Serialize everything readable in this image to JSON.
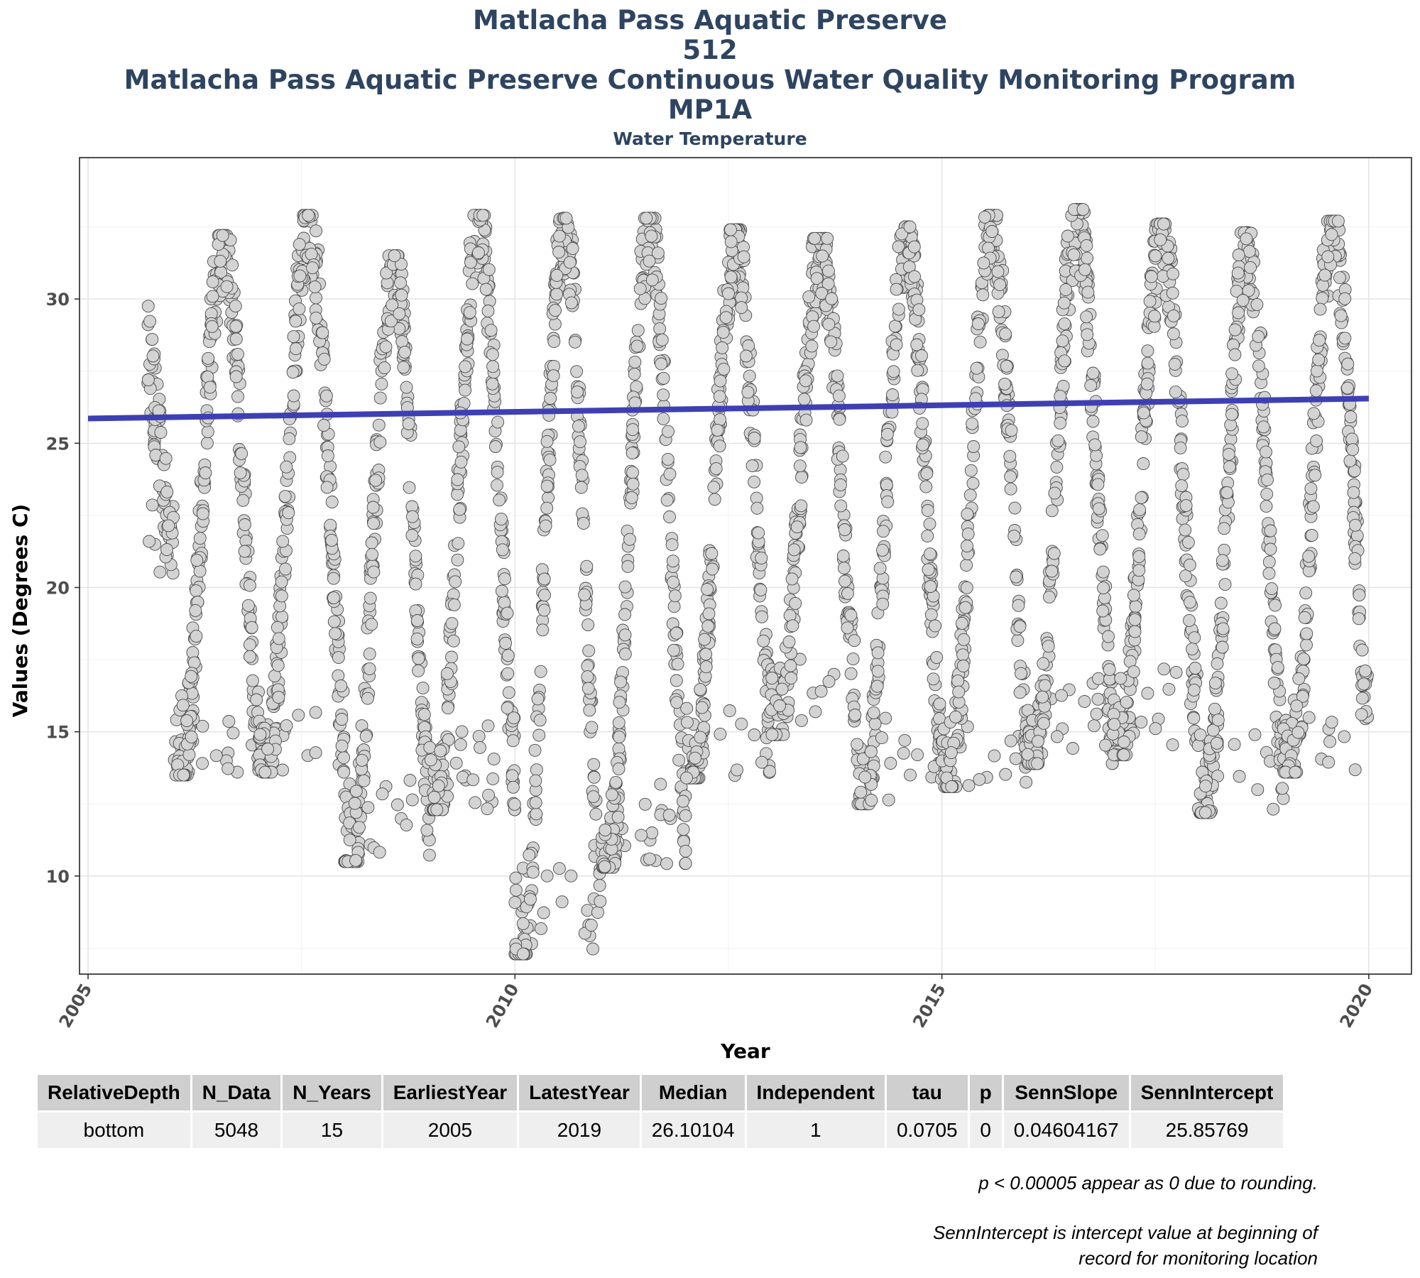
{
  "titles": {
    "line1": "Matlacha Pass Aquatic Preserve",
    "line2": "512",
    "line3": "Matlacha Pass Aquatic Preserve Continuous Water Quality Monitoring Program",
    "line4": "MP1A",
    "subtitle": "Water Temperature"
  },
  "chart_data": {
    "type": "scatter",
    "title": "Matlacha Pass Aquatic Preserve",
    "subtitle": "Water Temperature",
    "xlabel": "Year",
    "ylabel": "Values (Degrees C)",
    "xlim": [
      2004.9,
      2020.5
    ],
    "ylim": [
      6.6,
      34.9
    ],
    "x_ticks": [
      2005,
      2010,
      2015,
      2020
    ],
    "y_ticks": [
      10,
      15,
      20,
      25,
      30
    ],
    "grid": true,
    "legend": "none",
    "point_fill": "#d3d3d3",
    "point_stroke": "#4a4a4a",
    "trend_color": "#3f3fb4",
    "trend_line": {
      "x": [
        2005.0,
        2020.0
      ],
      "y": [
        25.85769,
        26.54831
      ]
    },
    "series_by_year": [
      {
        "year": 2005,
        "start": 2005.7,
        "end": 2006.0,
        "max": 29.9,
        "min": 20.5
      },
      {
        "year": 2006,
        "start": 2006.0,
        "end": 2007.0,
        "max": 32.2,
        "min": 13.5
      },
      {
        "year": 2007,
        "start": 2007.0,
        "end": 2008.0,
        "max": 32.9,
        "min": 13.6
      },
      {
        "year": 2008,
        "start": 2008.0,
        "end": 2009.0,
        "max": 31.5,
        "min": 10.5
      },
      {
        "year": 2009,
        "start": 2009.0,
        "end": 2010.0,
        "max": 32.9,
        "min": 12.3
      },
      {
        "year": 2010,
        "start": 2010.0,
        "end": 2011.0,
        "max": 32.8,
        "min": 7.3
      },
      {
        "year": 2011,
        "start": 2011.0,
        "end": 2012.0,
        "max": 32.8,
        "min": 10.3
      },
      {
        "year": 2012,
        "start": 2012.0,
        "end": 2013.0,
        "max": 32.4,
        "min": 13.4
      },
      {
        "year": 2013,
        "start": 2013.0,
        "end": 2014.0,
        "max": 32.1,
        "min": 14.9
      },
      {
        "year": 2014,
        "start": 2014.0,
        "end": 2015.0,
        "max": 32.5,
        "min": 12.5
      },
      {
        "year": 2015,
        "start": 2015.0,
        "end": 2016.0,
        "max": 32.9,
        "min": 13.1
      },
      {
        "year": 2016,
        "start": 2016.0,
        "end": 2017.0,
        "max": 33.1,
        "min": 13.9
      },
      {
        "year": 2017,
        "start": 2017.0,
        "end": 2018.0,
        "max": 32.6,
        "min": 14.2
      },
      {
        "year": 2018,
        "start": 2018.0,
        "end": 2019.0,
        "max": 32.3,
        "min": 12.2
      },
      {
        "year": 2019,
        "start": 2019.0,
        "end": 2020.0,
        "max": 32.7,
        "min": 13.6
      }
    ]
  },
  "table": {
    "headers": [
      "RelativeDepth",
      "N_Data",
      "N_Years",
      "EarliestYear",
      "LatestYear",
      "Median",
      "Independent",
      "tau",
      "p",
      "SennSlope",
      "SennIntercept"
    ],
    "rows": [
      [
        "bottom",
        "5048",
        "15",
        "2005",
        "2019",
        "26.10104",
        "1",
        "0.0705",
        "0",
        "0.04604167",
        "25.85769"
      ]
    ]
  },
  "notes": {
    "note1": "p < 0.00005 appear as 0 due to rounding.",
    "note2_line1": "SennIntercept is intercept value at beginning of",
    "note2_line2": "record for monitoring location"
  }
}
